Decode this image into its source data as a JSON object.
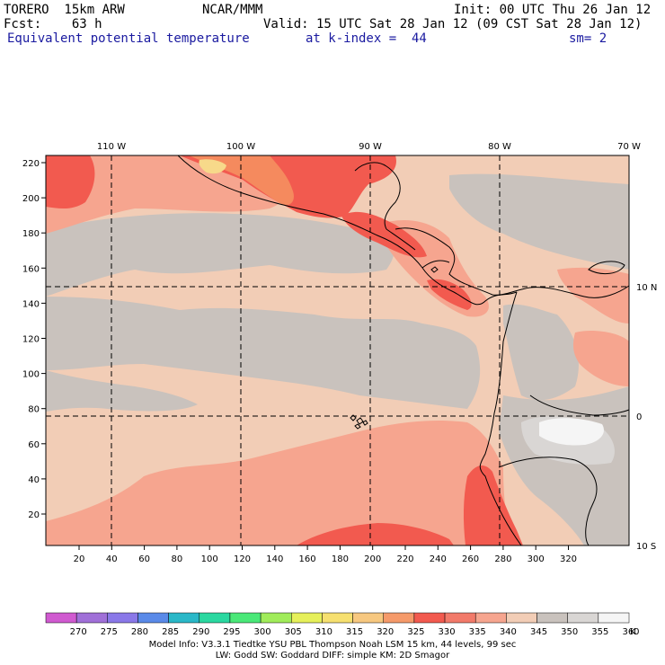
{
  "header": {
    "model": "TORERO  15km ARW",
    "center": "NCAR/MMM",
    "init": "Init: 00 UTC Thu 26 Jan 12",
    "fcst": "Fcst:    63 h",
    "valid": "Valid: 15 UTC Sat 28 Jan 12 (09 CST Sat 28 Jan 12)",
    "field": "Equivalent potential temperature",
    "level": "at k-index =  44",
    "smooth": "sm= 2"
  },
  "map": {
    "top_lon_labels": [
      "110 W",
      "100 W",
      "90 W",
      "80 W",
      "70 W"
    ],
    "right_lat_labels": [
      "10 N",
      "0",
      "10 S"
    ],
    "x_ticks": [
      "20",
      "40",
      "60",
      "80",
      "100",
      "120",
      "140",
      "160",
      "180",
      "200",
      "220",
      "240",
      "260",
      "280",
      "300",
      "320"
    ],
    "y_ticks": [
      "220",
      "200",
      "180",
      "160",
      "140",
      "120",
      "100",
      "80",
      "60",
      "40",
      "20"
    ],
    "colors": {
      "base": "#f2cdb6",
      "gray": "#c9c2bd",
      "lightgray": "#d9d6d4",
      "white": "#f5f5f5",
      "salmon": "#f6a58f",
      "red": "#f25a4f",
      "orange": "#f58a5e",
      "yellow": "#f7d98a",
      "coast": "#000000"
    }
  },
  "colorbar": {
    "labels": [
      "270",
      "275",
      "280",
      "285",
      "290",
      "295",
      "300",
      "305",
      "310",
      "315",
      "320",
      "325",
      "330",
      "335",
      "340",
      "345",
      "350",
      "355",
      "360"
    ],
    "unit": "K",
    "colors": [
      "#d05ad0",
      "#a070d8",
      "#8a78e8",
      "#5a8ae8",
      "#2ab8c8",
      "#2ad8a0",
      "#4ae878",
      "#a0ec5a",
      "#e6f05a",
      "#f6e070",
      "#f7c880",
      "#f59a6a",
      "#f25a4f",
      "#f27a6a",
      "#f6a58f",
      "#f2cdb6",
      "#c9c2bd",
      "#d9d6d4",
      "#f5f5f5"
    ]
  },
  "footer": {
    "line1": "Model Info: V3.3.1    Tiedtke YSU PBL  Thompson    Noah LSM  15 km,   44 levels,   99 sec",
    "line2": "LW: Godd SW: Goddard DIFF: simple KM: 2D Smagor"
  }
}
